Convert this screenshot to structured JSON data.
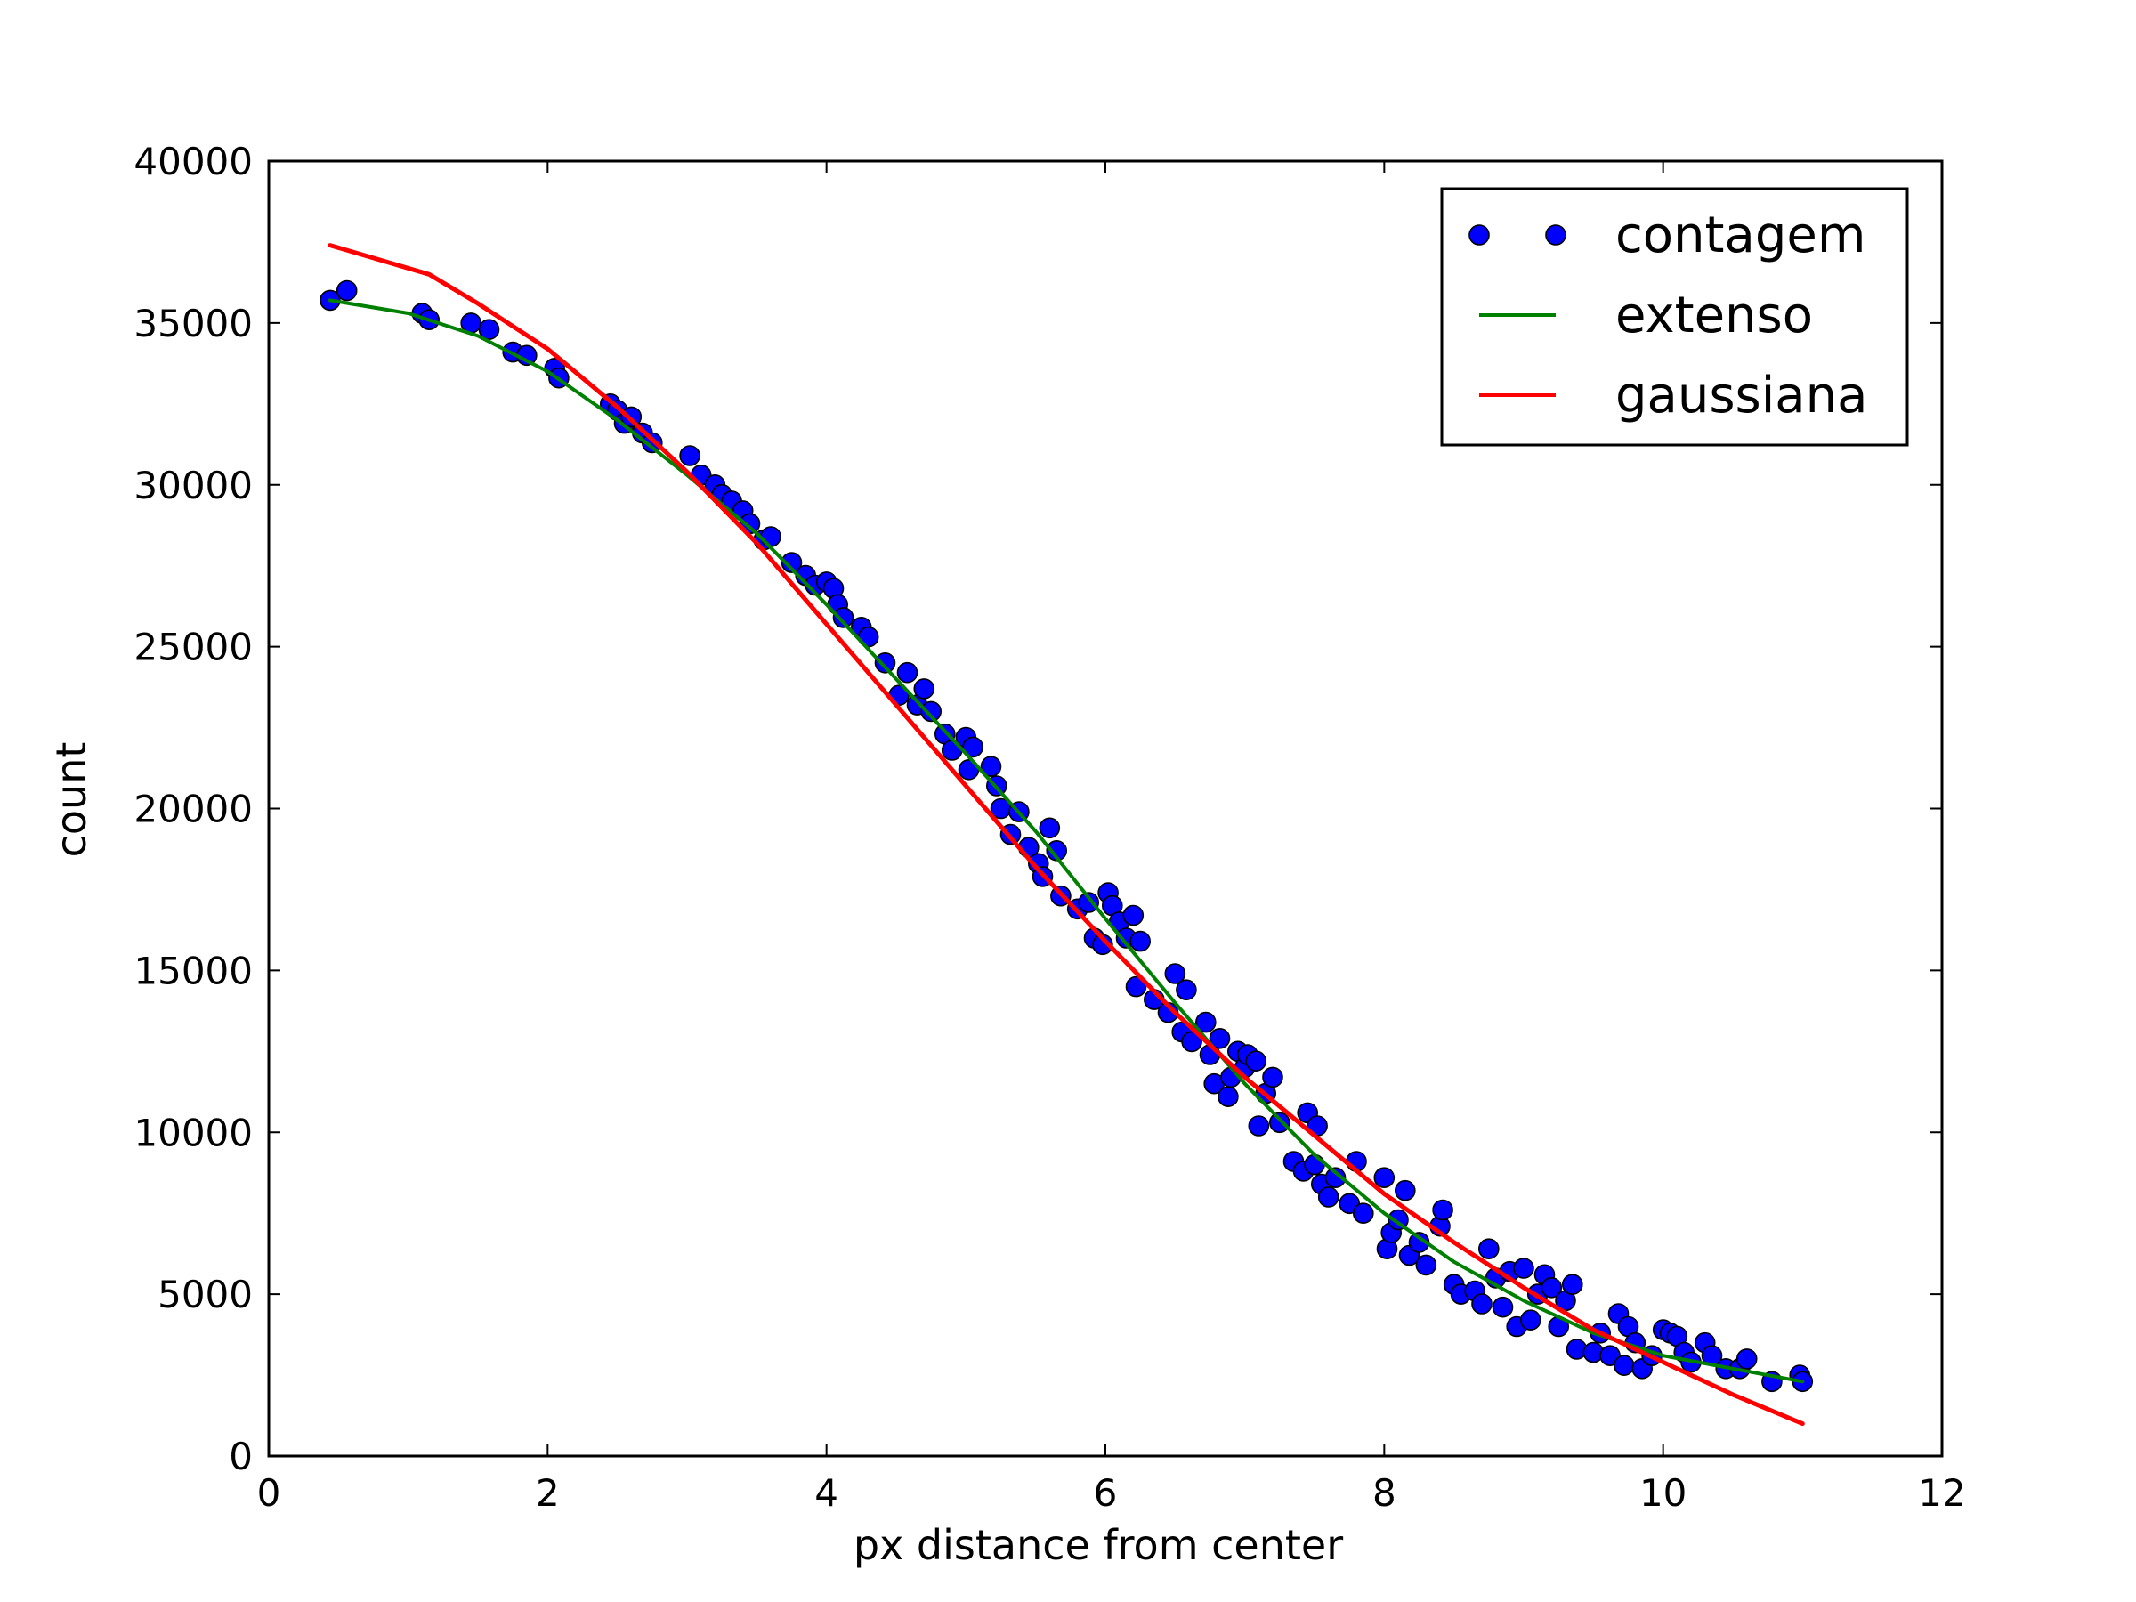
{
  "chart_data": {
    "type": "scatter",
    "title": "",
    "xlabel": "px distance from center",
    "ylabel": "count",
    "xlim": [
      0,
      12
    ],
    "ylim": [
      0,
      40000
    ],
    "x_ticks": [
      0,
      2,
      4,
      6,
      8,
      10,
      12
    ],
    "y_ticks": [
      0,
      5000,
      10000,
      15000,
      20000,
      25000,
      30000,
      35000,
      40000
    ],
    "grid": false,
    "legend_position": "upper-right",
    "series": [
      {
        "name": "contagem",
        "kind": "markers",
        "color": "#0000ff",
        "points": [
          [
            0.44,
            35700
          ],
          [
            0.56,
            36000
          ],
          [
            1.1,
            35300
          ],
          [
            1.15,
            35100
          ],
          [
            1.45,
            35000
          ],
          [
            1.58,
            34800
          ],
          [
            1.75,
            34100
          ],
          [
            1.85,
            34000
          ],
          [
            2.05,
            33600
          ],
          [
            2.08,
            33300
          ],
          [
            2.45,
            32500
          ],
          [
            2.5,
            32300
          ],
          [
            2.55,
            31900
          ],
          [
            2.6,
            32100
          ],
          [
            2.68,
            31600
          ],
          [
            2.75,
            31300
          ],
          [
            3.02,
            30900
          ],
          [
            3.1,
            30300
          ],
          [
            3.2,
            30000
          ],
          [
            3.25,
            29700
          ],
          [
            3.32,
            29500
          ],
          [
            3.4,
            29200
          ],
          [
            3.45,
            28800
          ],
          [
            3.55,
            28300
          ],
          [
            3.6,
            28400
          ],
          [
            3.75,
            27600
          ],
          [
            3.85,
            27200
          ],
          [
            3.92,
            26900
          ],
          [
            4.0,
            27000
          ],
          [
            4.05,
            26800
          ],
          [
            4.08,
            26300
          ],
          [
            4.12,
            25900
          ],
          [
            4.25,
            25600
          ],
          [
            4.3,
            25300
          ],
          [
            4.42,
            24500
          ],
          [
            4.52,
            23500
          ],
          [
            4.58,
            24200
          ],
          [
            4.65,
            23200
          ],
          [
            4.7,
            23700
          ],
          [
            4.75,
            23000
          ],
          [
            4.85,
            22300
          ],
          [
            4.9,
            21800
          ],
          [
            5.0,
            22200
          ],
          [
            5.02,
            21200
          ],
          [
            5.05,
            21900
          ],
          [
            5.18,
            21300
          ],
          [
            5.22,
            20700
          ],
          [
            5.25,
            20000
          ],
          [
            5.32,
            19200
          ],
          [
            5.38,
            19900
          ],
          [
            5.45,
            18800
          ],
          [
            5.52,
            18300
          ],
          [
            5.55,
            17900
          ],
          [
            5.6,
            19400
          ],
          [
            5.65,
            18700
          ],
          [
            5.68,
            17300
          ],
          [
            5.8,
            16900
          ],
          [
            5.88,
            17100
          ],
          [
            5.92,
            16000
          ],
          [
            5.98,
            15800
          ],
          [
            6.02,
            17400
          ],
          [
            6.05,
            17000
          ],
          [
            6.1,
            16500
          ],
          [
            6.15,
            16000
          ],
          [
            6.2,
            16700
          ],
          [
            6.22,
            14500
          ],
          [
            6.25,
            15900
          ],
          [
            6.35,
            14100
          ],
          [
            6.45,
            13700
          ],
          [
            6.5,
            14900
          ],
          [
            6.55,
            13100
          ],
          [
            6.58,
            14400
          ],
          [
            6.62,
            12800
          ],
          [
            6.72,
            13400
          ],
          [
            6.75,
            12400
          ],
          [
            6.78,
            11500
          ],
          [
            6.82,
            12900
          ],
          [
            6.88,
            11100
          ],
          [
            6.9,
            11700
          ],
          [
            6.95,
            12500
          ],
          [
            7.0,
            12000
          ],
          [
            7.02,
            12400
          ],
          [
            7.08,
            12200
          ],
          [
            7.1,
            10200
          ],
          [
            7.15,
            11200
          ],
          [
            7.2,
            11700
          ],
          [
            7.25,
            10300
          ],
          [
            7.35,
            9100
          ],
          [
            7.42,
            8800
          ],
          [
            7.45,
            10600
          ],
          [
            7.5,
            9000
          ],
          [
            7.52,
            10200
          ],
          [
            7.55,
            8400
          ],
          [
            7.6,
            8000
          ],
          [
            7.65,
            8600
          ],
          [
            7.75,
            7800
          ],
          [
            7.8,
            9100
          ],
          [
            7.85,
            7500
          ],
          [
            8.0,
            8600
          ],
          [
            8.02,
            6400
          ],
          [
            8.05,
            6900
          ],
          [
            8.1,
            7300
          ],
          [
            8.15,
            8200
          ],
          [
            8.18,
            6200
          ],
          [
            8.25,
            6600
          ],
          [
            8.3,
            5900
          ],
          [
            8.4,
            7100
          ],
          [
            8.42,
            7600
          ],
          [
            8.5,
            5300
          ],
          [
            8.55,
            5000
          ],
          [
            8.65,
            5100
          ],
          [
            8.7,
            4700
          ],
          [
            8.75,
            6400
          ],
          [
            8.8,
            5500
          ],
          [
            8.85,
            4600
          ],
          [
            8.9,
            5700
          ],
          [
            8.95,
            4000
          ],
          [
            9.0,
            5800
          ],
          [
            9.05,
            4200
          ],
          [
            9.1,
            5000
          ],
          [
            9.15,
            5600
          ],
          [
            9.2,
            5200
          ],
          [
            9.25,
            4000
          ],
          [
            9.3,
            4800
          ],
          [
            9.35,
            5300
          ],
          [
            9.38,
            3300
          ],
          [
            9.5,
            3200
          ],
          [
            9.55,
            3800
          ],
          [
            9.62,
            3100
          ],
          [
            9.68,
            4400
          ],
          [
            9.72,
            2800
          ],
          [
            9.75,
            4000
          ],
          [
            9.8,
            3500
          ],
          [
            9.85,
            2700
          ],
          [
            9.92,
            3100
          ],
          [
            10.0,
            3900
          ],
          [
            10.05,
            3800
          ],
          [
            10.1,
            3700
          ],
          [
            10.15,
            3200
          ],
          [
            10.2,
            2900
          ],
          [
            10.3,
            3500
          ],
          [
            10.35,
            3100
          ],
          [
            10.45,
            2700
          ],
          [
            10.55,
            2700
          ],
          [
            10.6,
            3000
          ],
          [
            10.78,
            2300
          ],
          [
            10.98,
            2500
          ],
          [
            11.0,
            2300
          ]
        ]
      },
      {
        "name": "extenso",
        "kind": "line",
        "color": "#008000",
        "points": [
          [
            0.44,
            35700
          ],
          [
            1.0,
            35300
          ],
          [
            1.5,
            34600
          ],
          [
            2.0,
            33500
          ],
          [
            2.5,
            32000
          ],
          [
            3.0,
            30300
          ],
          [
            3.5,
            28500
          ],
          [
            4.0,
            26300
          ],
          [
            4.5,
            24000
          ],
          [
            5.0,
            21700
          ],
          [
            5.5,
            19300
          ],
          [
            6.0,
            16600
          ],
          [
            6.5,
            14000
          ],
          [
            7.0,
            11500
          ],
          [
            7.5,
            9300
          ],
          [
            8.0,
            7500
          ],
          [
            8.5,
            6000
          ],
          [
            9.0,
            4800
          ],
          [
            9.5,
            3800
          ],
          [
            10.0,
            3100
          ],
          [
            10.5,
            2700
          ],
          [
            11.0,
            2300
          ]
        ]
      },
      {
        "name": "gaussiana",
        "kind": "line",
        "color": "#ff0000",
        "points": [
          [
            0.44,
            37400
          ],
          [
            1.15,
            36500
          ],
          [
            1.5,
            35600
          ],
          [
            2.0,
            34200
          ],
          [
            2.5,
            32400
          ],
          [
            3.0,
            30400
          ],
          [
            3.5,
            28200
          ],
          [
            4.0,
            25700
          ],
          [
            4.5,
            23200
          ],
          [
            5.0,
            20700
          ],
          [
            5.5,
            18200
          ],
          [
            6.0,
            15900
          ],
          [
            6.5,
            13700
          ],
          [
            7.0,
            11700
          ],
          [
            7.5,
            9900
          ],
          [
            8.0,
            8100
          ],
          [
            8.5,
            6600
          ],
          [
            9.0,
            5200
          ],
          [
            9.5,
            3900
          ],
          [
            10.0,
            2900
          ],
          [
            10.5,
            1900
          ],
          [
            11.0,
            1000
          ]
        ]
      }
    ]
  }
}
